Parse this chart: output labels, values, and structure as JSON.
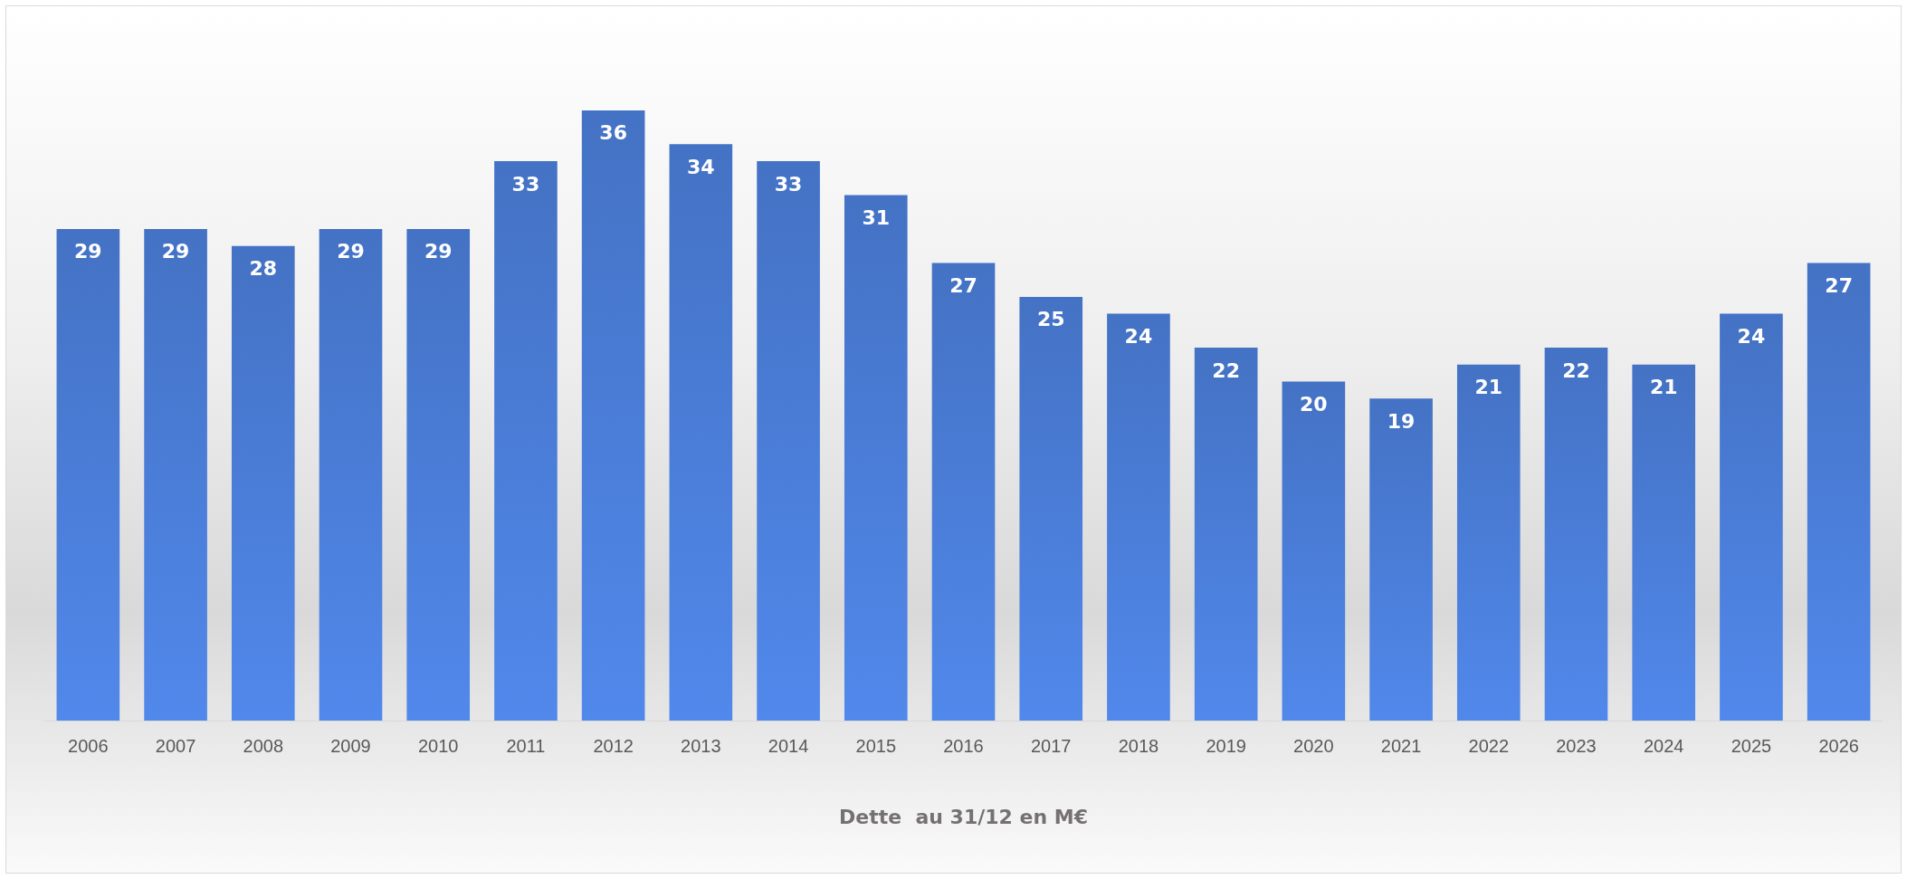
{
  "chart_data": {
    "type": "bar",
    "xlabel": "Dette  au 31/12 en M€",
    "categories": [
      "2006",
      "2007",
      "2008",
      "2009",
      "2010",
      "2011",
      "2012",
      "2013",
      "2014",
      "2015",
      "2016",
      "2017",
      "2018",
      "2019",
      "2020",
      "2021",
      "2022",
      "2023",
      "2024",
      "2025",
      "2026"
    ],
    "values": [
      29,
      29,
      28,
      29,
      29,
      33,
      36,
      34,
      33,
      31,
      27,
      25,
      24,
      22,
      20,
      19,
      21,
      22,
      21,
      24,
      27
    ],
    "color": "#4472c4",
    "data_labels": true
  }
}
